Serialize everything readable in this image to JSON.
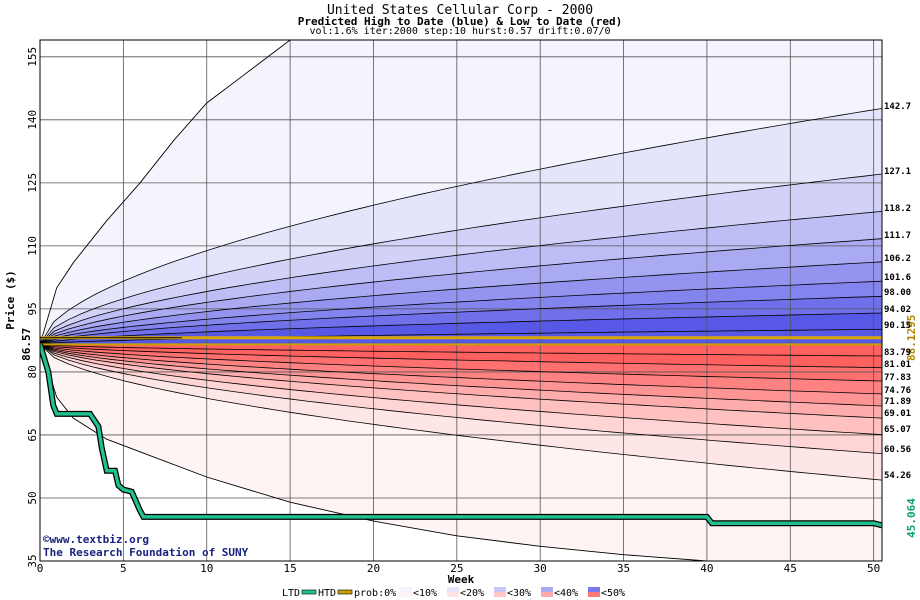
{
  "header": {
    "title": "United States Cellular Corp - 2000",
    "subtitle": "Predicted High to Date (blue) &  Low to Date (red)",
    "params": "vol:1.6% iter:2000 step:10 hurst:0.57 drift:0.07/0"
  },
  "chart_data": {
    "type": "area",
    "title": "United States Cellular Corp - 2000",
    "xlabel": "Week",
    "ylabel": "Price ($)",
    "xlim": [
      0,
      50.5
    ],
    "ylim": [
      35,
      159
    ],
    "x_ticks": [
      0,
      5,
      10,
      15,
      20,
      25,
      30,
      35,
      40,
      45,
      50
    ],
    "y_ticks": [
      35,
      50,
      65,
      80,
      95,
      110,
      125,
      140,
      155
    ],
    "grid": true,
    "start_price": 86.57,
    "start_price_label": "86.57",
    "current_price": 88.1295,
    "current_price_label": "88.1295",
    "htd_end_label": "45.064",
    "high_quantiles": [
      {
        "label": "142.7",
        "end": 142.7
      },
      {
        "label": "127.1",
        "end": 127.1
      },
      {
        "label": "118.2",
        "end": 118.2
      },
      {
        "label": "111.7",
        "end": 111.7
      },
      {
        "label": "106.2",
        "end": 106.2
      },
      {
        "label": "101.6",
        "end": 101.6
      },
      {
        "label": "98.00",
        "end": 98.0
      },
      {
        "label": "94.02",
        "end": 94.02
      },
      {
        "label": "90.15",
        "end": 90.15
      }
    ],
    "low_quantiles": [
      {
        "label": "83.79",
        "end": 83.79
      },
      {
        "label": "81.01",
        "end": 81.01
      },
      {
        "label": "77.83",
        "end": 77.83
      },
      {
        "label": "74.76",
        "end": 74.76
      },
      {
        "label": "71.89",
        "end": 71.89
      },
      {
        "label": "69.01",
        "end": 69.01
      },
      {
        "label": "65.07",
        "end": 65.07
      },
      {
        "label": "60.56",
        "end": 60.56
      },
      {
        "label": "54.26",
        "end": 54.26
      }
    ],
    "max_envelope": {
      "x": [
        0,
        1,
        2,
        4,
        6,
        8,
        10,
        12,
        14,
        15
      ],
      "y": [
        86.57,
        100,
        106,
        116,
        125,
        135,
        144,
        150,
        156,
        159
      ]
    },
    "min_envelope": {
      "x": [
        0,
        1,
        2,
        4,
        6,
        10,
        15,
        20,
        25,
        30,
        35,
        40
      ],
      "y": [
        86.57,
        74,
        69,
        64,
        61,
        55,
        49,
        44.5,
        41,
        38.5,
        36.5,
        35
      ]
    },
    "htd_series": {
      "x": [
        0,
        0.5,
        0.8,
        1,
        2,
        3,
        3.5,
        3.7,
        4,
        4.5,
        4.7,
        5,
        5.5,
        6,
        6.2,
        40,
        40.3,
        50,
        50.5
      ],
      "y": [
        86.57,
        80,
        72,
        70,
        70,
        70,
        67,
        62,
        56.5,
        56.5,
        53,
        52,
        51.5,
        47,
        45.5,
        45.5,
        44,
        44,
        43.5
      ]
    },
    "ltd_series": {
      "x": [
        0,
        50.5
      ],
      "y": [
        86.57,
        86.57
      ]
    },
    "legend": [
      "LTD",
      "HTD",
      "prob:0%",
      "<10%",
      "<20%",
      "<30%",
      "<40%",
      "<50%"
    ],
    "watermark": [
      "©www.textbiz.org",
      "The Research Foundation of SUNY"
    ],
    "colors": {
      "high_bands": [
        "#f4f4fd",
        "#e4e4fb",
        "#d2d2f8",
        "#bebef6",
        "#aaaaf3",
        "#9494f0",
        "#8484ee",
        "#7070ea",
        "#5858e6"
      ],
      "low_bands": [
        "#fff4f4",
        "#ffe6e6",
        "#ffd4d4",
        "#ffc0c0",
        "#ffacac",
        "#ff9494",
        "#ff8282",
        "#ff7070",
        "#ff6060"
      ],
      "htd": "#20c090",
      "ltd": "#c8a000",
      "price": "#d8a800"
    }
  }
}
